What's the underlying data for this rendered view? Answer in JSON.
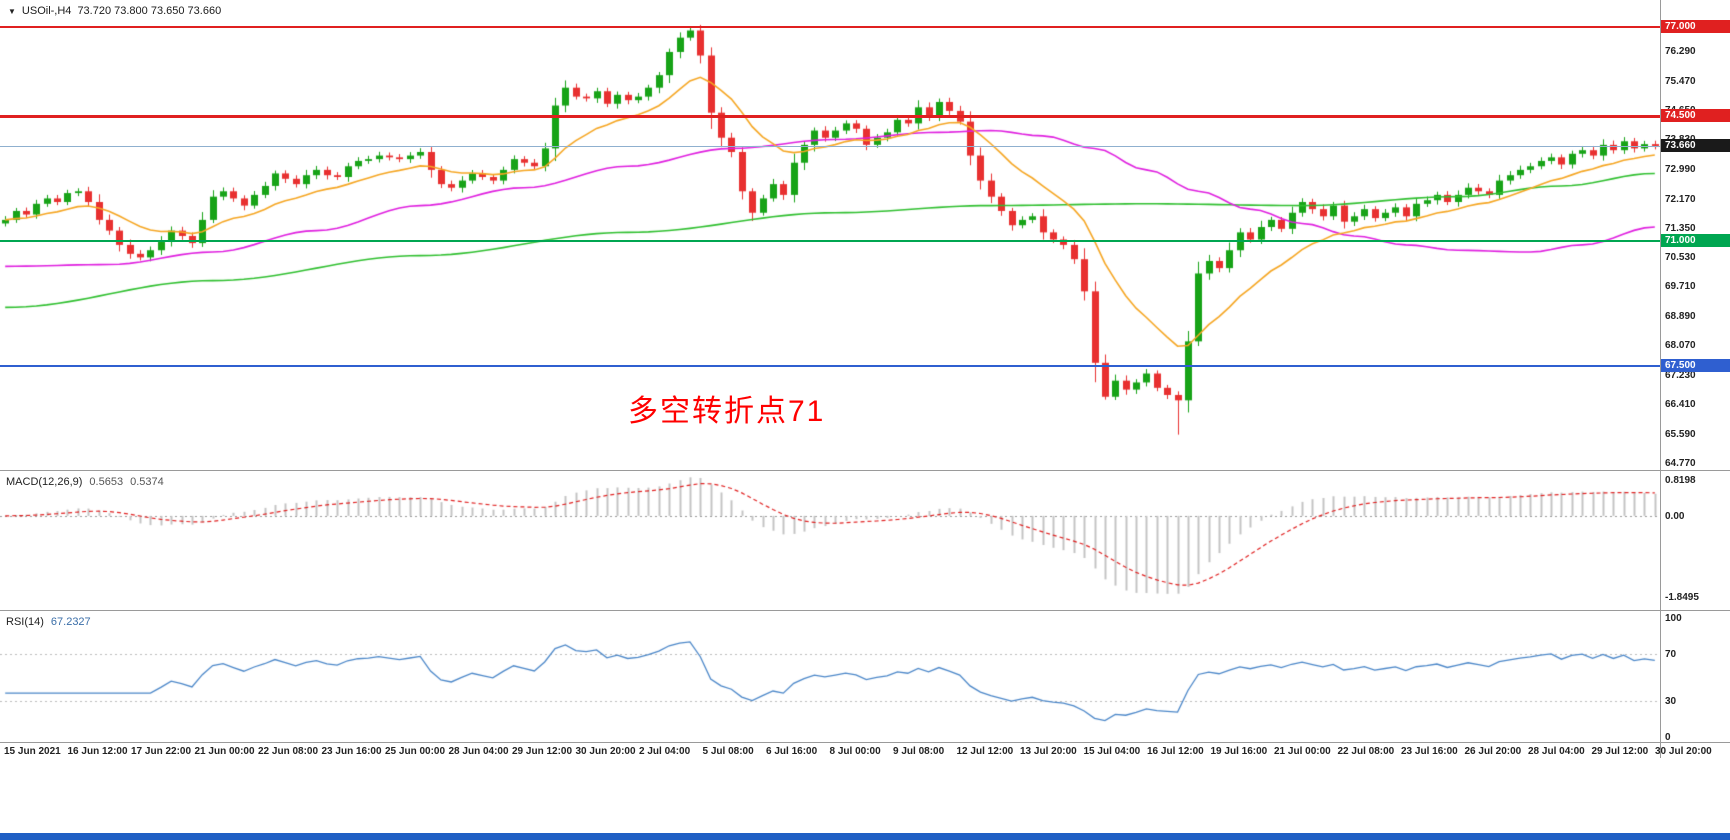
{
  "header": {
    "symbol_tf": "USOil-,H4",
    "ohlc": "73.720 73.800 73.650 73.660"
  },
  "annotation": {
    "text": "多空转折点71",
    "color": "#ff0000"
  },
  "indicators": {
    "macd": {
      "name": "MACD(12,26,9)",
      "value_main": "0.5653",
      "value_signal": "0.5374",
      "scale_max": "0.8198",
      "scale_zero": "0.00",
      "scale_min": "-1.8495"
    },
    "rsi": {
      "name": "RSI(14)",
      "value": "67.2327",
      "levels": [
        "100",
        "70",
        "30",
        "0"
      ]
    }
  },
  "colors": {
    "up": "#17a317",
    "down": "#e83030",
    "ma_fast": "#f5a623",
    "ma_mid": "#df1fdf",
    "ma_slow": "#2fbf2f",
    "macd_hist": "#c4c4c4",
    "macd_signal": "#e02020",
    "macd_zero": "#999999",
    "rsi_line": "#4a86c8",
    "rsi_level": "#bbbbbb",
    "bottom_bar": "#1f5fc4"
  },
  "chart_data": {
    "type": "candlestick",
    "title": "USOil- H4 chart with MACD(12,26,9) and RSI(14)",
    "symbol": "USOil-",
    "timeframe": "H4",
    "quote": {
      "open": 73.72,
      "high": 73.8,
      "low": 73.65,
      "close": 73.66
    },
    "price_axis": {
      "ylim": [
        64.6,
        77.25
      ],
      "ticks": [
        "76.290",
        "75.470",
        "74.650",
        "73.830",
        "72.990",
        "72.170",
        "71.350",
        "70.530",
        "69.710",
        "68.890",
        "68.070",
        "67.230",
        "66.410",
        "65.590",
        "64.770"
      ]
    },
    "badges": [
      {
        "label": "77.000",
        "price": 77.0,
        "bg": "#e02020"
      },
      {
        "label": "74.500",
        "price": 74.5,
        "bg": "#e02020"
      },
      {
        "label": "73.660",
        "price": 73.66,
        "bg": "#1a1a1a"
      },
      {
        "label": "71.000",
        "price": 71.0,
        "bg": "#00a651"
      },
      {
        "label": "67.500",
        "price": 67.5,
        "bg": "#2f5fd0"
      }
    ],
    "hlines": [
      {
        "price": 77.0,
        "color": "#e02020",
        "w": 2
      },
      {
        "price": 74.5,
        "color": "#e02020",
        "w": 3
      },
      {
        "price": 73.66,
        "color": "#8fb0cf",
        "w": 1
      },
      {
        "price": 71.0,
        "color": "#00a651",
        "w": 2
      },
      {
        "price": 67.5,
        "color": "#2f5fd0",
        "w": 2
      }
    ],
    "time_axis": [
      "15 Jun 2021",
      "16 Jun 12:00",
      "17 Jun 22:00",
      "21 Jun 00:00",
      "22 Jun 08:00",
      "23 Jun 16:00",
      "25 Jun 00:00",
      "28 Jun 04:00",
      "29 Jun 12:00",
      "30 Jun 20:00",
      "2 Jul 04:00",
      "5 Jul 08:00",
      "6 Jul 16:00",
      "8 Jul 00:00",
      "9 Jul 08:00",
      "12 Jul 12:00",
      "13 Jul 20:00",
      "15 Jul 04:00",
      "16 Jul 12:00",
      "19 Jul 16:00",
      "21 Jul 00:00",
      "22 Jul 08:00",
      "23 Jul 16:00",
      "26 Jul 20:00",
      "28 Jul 04:00",
      "29 Jul 12:00",
      "30 Jul 20:00"
    ],
    "candles": {
      "first_open": 71.5,
      "closes": [
        71.6,
        71.85,
        71.75,
        72.05,
        72.2,
        72.1,
        72.35,
        72.4,
        72.1,
        71.6,
        71.3,
        70.9,
        70.65,
        70.55,
        70.75,
        71.0,
        71.3,
        71.15,
        70.95,
        71.6,
        72.25,
        72.4,
        72.2,
        72.0,
        72.3,
        72.55,
        72.9,
        72.75,
        72.6,
        72.85,
        73.0,
        72.85,
        72.8,
        73.1,
        73.25,
        73.3,
        73.4,
        73.35,
        73.3,
        73.4,
        73.5,
        73.0,
        72.6,
        72.5,
        72.7,
        72.9,
        72.8,
        72.7,
        73.0,
        73.3,
        73.2,
        73.1,
        73.6,
        74.8,
        75.3,
        75.05,
        75.0,
        75.2,
        74.85,
        75.1,
        74.95,
        75.05,
        75.3,
        75.65,
        76.3,
        76.7,
        76.9,
        76.2,
        74.6,
        73.9,
        73.5,
        72.4,
        71.8,
        72.2,
        72.6,
        72.3,
        73.2,
        73.7,
        74.1,
        73.9,
        74.1,
        74.3,
        74.15,
        73.7,
        73.9,
        74.05,
        74.4,
        74.3,
        74.75,
        74.5,
        74.9,
        74.65,
        74.35,
        73.4,
        72.7,
        72.25,
        71.85,
        71.45,
        71.6,
        71.7,
        71.25,
        71.05,
        70.9,
        70.5,
        69.6,
        67.6,
        66.65,
        67.1,
        66.85,
        67.05,
        67.3,
        66.9,
        66.7,
        66.55,
        68.2,
        70.1,
        70.45,
        70.25,
        70.75,
        71.25,
        71.05,
        71.4,
        71.6,
        71.35,
        71.8,
        72.1,
        71.9,
        71.7,
        72.0,
        71.55,
        71.7,
        71.9,
        71.65,
        71.8,
        71.95,
        71.7,
        72.05,
        72.15,
        72.3,
        72.1,
        72.3,
        72.5,
        72.4,
        72.3,
        72.7,
        72.85,
        73.0,
        73.1,
        73.25,
        73.35,
        73.15,
        73.45,
        73.55,
        73.4,
        73.7,
        73.55,
        73.8,
        73.6,
        73.72,
        73.66
      ],
      "wick_overrides": [
        {
          "i": 66,
          "h": 77.0
        },
        {
          "i": 113,
          "l": 65.59
        }
      ]
    },
    "moving_averages": {
      "fast": {
        "kind": "ema",
        "period": 13,
        "color": "#f5a623"
      },
      "mid": {
        "color": "#df1fdf",
        "points": [
          [
            0,
            70.3
          ],
          [
            10,
            70.35
          ],
          [
            20,
            70.7
          ],
          [
            30,
            71.3
          ],
          [
            40,
            72.0
          ],
          [
            50,
            72.5
          ],
          [
            60,
            73.1
          ],
          [
            70,
            73.6
          ],
          [
            80,
            73.85
          ],
          [
            90,
            74.05
          ],
          [
            95,
            74.1
          ],
          [
            100,
            73.95
          ],
          [
            105,
            73.6
          ],
          [
            110,
            73.0
          ],
          [
            115,
            72.4
          ],
          [
            120,
            71.9
          ],
          [
            125,
            71.5
          ],
          [
            130,
            71.15
          ],
          [
            135,
            70.9
          ],
          [
            140,
            70.75
          ],
          [
            147,
            70.7
          ],
          [
            152,
            70.9
          ],
          [
            159,
            71.4
          ]
        ]
      },
      "slow": {
        "color": "#2fbf2f",
        "points": [
          [
            0,
            69.15
          ],
          [
            20,
            69.9
          ],
          [
            40,
            70.6
          ],
          [
            60,
            71.25
          ],
          [
            80,
            71.8
          ],
          [
            95,
            72.0
          ],
          [
            110,
            72.05
          ],
          [
            125,
            72.0
          ],
          [
            140,
            72.25
          ],
          [
            150,
            72.55
          ],
          [
            159,
            72.9
          ]
        ]
      }
    },
    "macd_params": [
      12,
      26,
      9
    ],
    "rsi_params": [
      14
    ],
    "macd_ylim": [
      -2.1,
      1.0
    ],
    "rsi_ylim": [
      0,
      100
    ]
  }
}
